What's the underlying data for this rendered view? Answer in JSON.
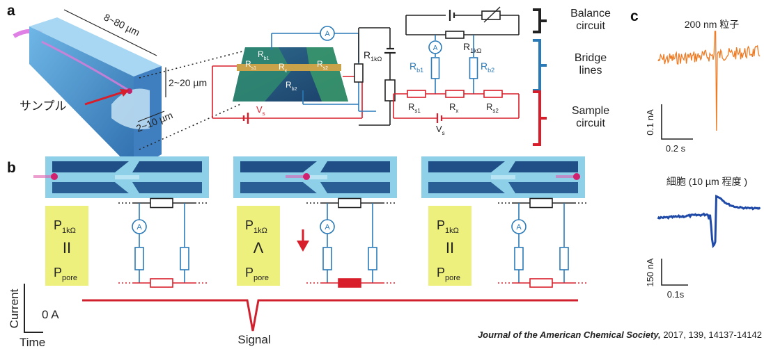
{
  "panel_a": {
    "label": "a",
    "dimensions": [
      "8~80 µm",
      "2~20 µm",
      "2~10 µm"
    ],
    "sample_label": "サンプル",
    "chip_labels": [
      {
        "base": "R",
        "sub": "b1"
      },
      {
        "base": "R",
        "sub": "s1"
      },
      {
        "base": "R",
        "sub": "x"
      },
      {
        "base": "R",
        "sub": "s2"
      },
      {
        "base": "R",
        "sub": "b2"
      }
    ],
    "chip_ammeter": "A",
    "chip_r1k": {
      "base": "R",
      "sub": "1kΩ"
    },
    "chip_vs": {
      "base": "V",
      "sub": "s"
    },
    "bridge": {
      "ammeter": "A",
      "r1k": {
        "base": "R",
        "sub": "1kΩ"
      },
      "rb1": {
        "base": "R",
        "sub": "b1"
      },
      "rb2": {
        "base": "R",
        "sub": "b2"
      },
      "rs1": {
        "base": "R",
        "sub": "s1"
      },
      "rx": {
        "base": "R",
        "sub": "x"
      },
      "rs2": {
        "base": "R",
        "sub": "s2"
      },
      "vs": {
        "base": "V",
        "sub": "s"
      }
    },
    "legend": [
      {
        "lines": [
          "Balance",
          "circuit"
        ]
      },
      {
        "lines": [
          "Bridge",
          "lines"
        ]
      },
      {
        "lines": [
          "Sample",
          "circuit"
        ]
      }
    ]
  },
  "panel_b": {
    "label": "b",
    "states": [
      {
        "p_top": {
          "base": "P",
          "sub": "1kΩ"
        },
        "relation": "II",
        "p_bottom": {
          "base": "P",
          "sub": "pore"
        },
        "ammeter": "A"
      },
      {
        "p_top": {
          "base": "P",
          "sub": "1kΩ"
        },
        "relation": "Λ",
        "p_bottom": {
          "base": "P",
          "sub": "pore"
        },
        "ammeter": "A"
      },
      {
        "p_top": {
          "base": "P",
          "sub": "1kΩ"
        },
        "relation": "II",
        "p_bottom": {
          "base": "P",
          "sub": "pore"
        },
        "ammeter": "A"
      }
    ],
    "current_label": "Current",
    "time_label": "Time",
    "zero_label": "0 A",
    "signal_label": "Signal"
  },
  "panel_c": {
    "label": "c",
    "traces": [
      {
        "title": "200 nm 粒子",
        "y_scale": "0.1 nA",
        "x_scale": "0.2 s"
      },
      {
        "title": "細胞 (10 µm 程度 )",
        "y_scale": "150 nA",
        "x_scale": "0.1s"
      }
    ]
  },
  "citation": {
    "journal": "Journal of the American Chemical Society,",
    "details": "2017, 139, 14137-14142"
  }
}
